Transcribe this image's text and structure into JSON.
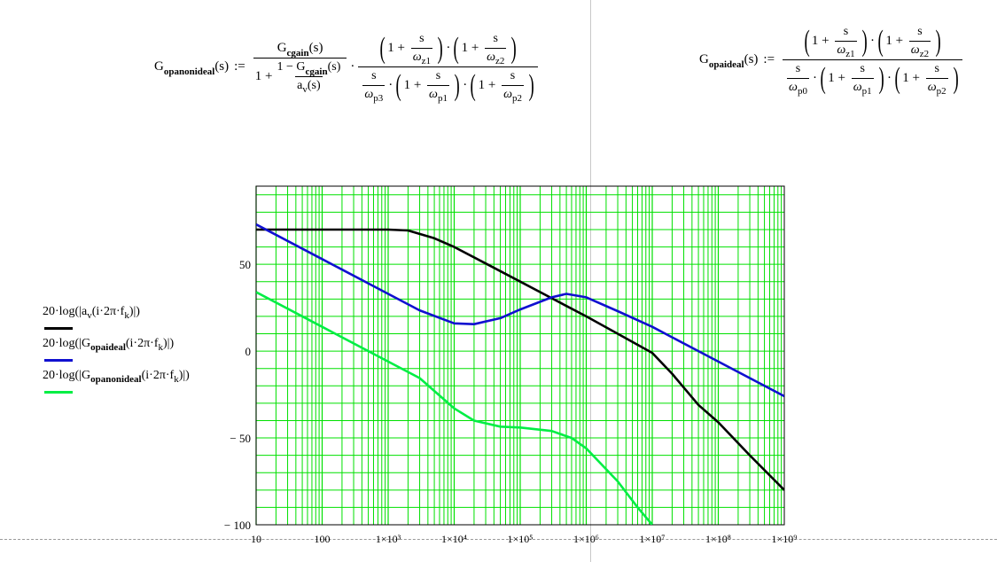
{
  "formulas": {
    "left": {
      "lhs_main": "G",
      "lhs_sub": "opanonideal",
      "lhs_arg": "(s)",
      "assign": ":=",
      "gain_num_main": "G",
      "gain_num_sub": "cgain",
      "gain_num_arg": "(s)",
      "one": "1",
      "plus": "+",
      "inner_num": "1 − G",
      "inner_num_sub": "cgain",
      "inner_num_arg": "(s)",
      "inner_den_main": "a",
      "inner_den_sub": "v",
      "inner_den_arg": "(s)",
      "s": "s",
      "omega": "ω",
      "z1": "z1",
      "z2": "z2",
      "p3": "p3",
      "p1": "p1",
      "p2": "p2",
      "onep": "1 +"
    },
    "right": {
      "lhs_main": "G",
      "lhs_sub": "opaideal",
      "lhs_arg": "(s)",
      "assign": ":=",
      "s": "s",
      "omega": "ω",
      "z1": "z1",
      "z2": "z2",
      "p0": "p0",
      "p1": "p1",
      "p2": "p2",
      "onep": "1 +"
    }
  },
  "legend": [
    {
      "text": "20·log(|a_v(i·2π·f_k)|)",
      "color": "#000000"
    },
    {
      "text": "20·log(|G_opaideal(i·2π·f_k)|)",
      "color": "#1010d0"
    },
    {
      "text": "20·log(|G_opanonideal(i·2π·f_k)|)",
      "color": "#00ee44"
    }
  ],
  "legend_parts": {
    "a": {
      "pre": "20·log(|a",
      "sub": "v",
      "post": "(i·2π·f",
      "sub2": "k",
      "end": ")|)"
    },
    "b": {
      "pre": "20·log(|G",
      "sub": "opaideal",
      "post": "(i·2π·f",
      "sub2": "k",
      "end": ")|)"
    },
    "c": {
      "pre": "20·log(|G",
      "sub": "opanonideal",
      "post": "(i·2π·f",
      "sub2": "k",
      "end": ")|)"
    }
  },
  "chart_data": {
    "type": "line",
    "x_scale": "log",
    "xlim": [
      10,
      1000000000
    ],
    "ylim": [
      -100,
      95
    ],
    "x_ticks": [
      10,
      100,
      1000,
      10000,
      100000,
      1000000,
      10000000,
      100000000,
      1000000000
    ],
    "x_tick_labels": [
      "10",
      "100",
      "1×10³",
      "1×10⁴",
      "1×10⁵",
      "1×10⁶",
      "1×10⁷",
      "1×10⁸",
      "1×10⁹"
    ],
    "y_ticks": [
      50,
      0,
      -50,
      -100
    ],
    "y_tick_labels": [
      "50",
      "0",
      "− 50",
      "− 100"
    ],
    "grid": true,
    "grid_color": "#00e000",
    "legend_position": "left",
    "series": [
      {
        "name": "20·log(|a_v(i·2π·f_k)|)",
        "color": "#000000",
        "points": [
          [
            10,
            70
          ],
          [
            100,
            70
          ],
          [
            1000,
            70
          ],
          [
            2000,
            69.5
          ],
          [
            5000,
            65
          ],
          [
            10000,
            60
          ],
          [
            30000,
            50.5
          ],
          [
            100000,
            40
          ],
          [
            300000,
            30.5
          ],
          [
            1000000,
            20
          ],
          [
            3000000,
            10
          ],
          [
            10000000,
            -1
          ],
          [
            20000000,
            -13
          ],
          [
            50000000,
            -31
          ],
          [
            100000000,
            -41
          ],
          [
            300000000,
            -60
          ],
          [
            1000000000,
            -80
          ]
        ]
      },
      {
        "name": "20·log(|G_opaideal(i·2π·f_k)|)",
        "color": "#1010d0",
        "points": [
          [
            10,
            73
          ],
          [
            100,
            53
          ],
          [
            1000,
            33
          ],
          [
            3000,
            23.5
          ],
          [
            10000,
            16
          ],
          [
            20000,
            15.5
          ],
          [
            50000,
            19
          ],
          [
            100000,
            24
          ],
          [
            300000,
            31
          ],
          [
            500000,
            33
          ],
          [
            1000000,
            31
          ],
          [
            3000000,
            23
          ],
          [
            10000000,
            14
          ],
          [
            100000000,
            -6
          ],
          [
            1000000000,
            -26
          ]
        ]
      },
      {
        "name": "20·log(|G_opanonideal(i·2π·f_k)|)",
        "color": "#00ee44",
        "points": [
          [
            10,
            34
          ],
          [
            100,
            14
          ],
          [
            1000,
            -6
          ],
          [
            3000,
            -15.5
          ],
          [
            10000,
            -33
          ],
          [
            20000,
            -40
          ],
          [
            50000,
            -43.5
          ],
          [
            100000,
            -44
          ],
          [
            300000,
            -46
          ],
          [
            600000,
            -50
          ],
          [
            1000000,
            -56
          ],
          [
            3000000,
            -75
          ],
          [
            6000000,
            -90
          ],
          [
            10000000,
            -100
          ]
        ]
      }
    ]
  }
}
